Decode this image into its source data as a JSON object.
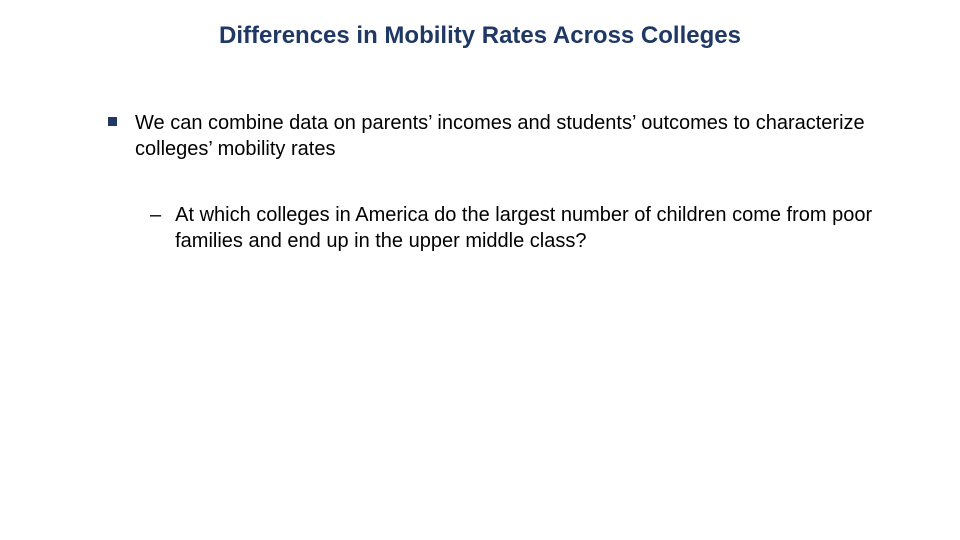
{
  "slide": {
    "title": "Differences in Mobility Rates Across Colleges",
    "title_color": "#1f3864",
    "title_fontsize": 24,
    "background_color": "#ffffff",
    "body_fontsize": 20,
    "body_color": "#000000",
    "bullets": [
      {
        "level": 1,
        "marker": "square",
        "marker_color": "#1f3864",
        "text": "We can combine data on parents’ incomes and students’ outcomes to characterize colleges’ mobility rates"
      },
      {
        "level": 2,
        "marker": "–",
        "text": "At which colleges in America do the largest number of children come from poor families and end up in the upper middle class?"
      }
    ]
  }
}
